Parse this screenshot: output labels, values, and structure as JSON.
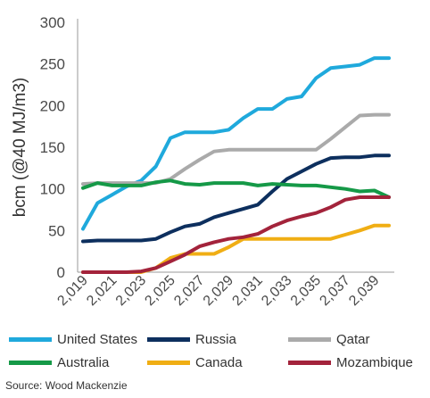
{
  "chart_data": {
    "type": "line",
    "ylabel": "bcm (@40 MJ/m3)",
    "ylim": [
      0,
      300
    ],
    "yticks": [
      0,
      50,
      100,
      150,
      200,
      250,
      300
    ],
    "ytick_labels": [
      "0",
      "50",
      "100",
      "150",
      "200",
      "250",
      "300"
    ],
    "x": [
      2019,
      2020,
      2021,
      2022,
      2023,
      2024,
      2025,
      2026,
      2027,
      2028,
      2029,
      2030,
      2031,
      2032,
      2033,
      2034,
      2035,
      2036,
      2037,
      2038,
      2039,
      2040
    ],
    "xtick_labels": [
      "2,019",
      "2,021",
      "2,023",
      "2,025",
      "2,027",
      "2,029",
      "2,031",
      "2,033",
      "2,035",
      "2,037",
      "2,039"
    ],
    "grid": false,
    "legend_position": "bottom",
    "series": [
      {
        "name": "United States",
        "color": "#1fa9dc",
        "values": [
          52,
          83,
          93,
          103,
          110,
          127,
          161,
          168,
          168,
          168,
          171,
          185,
          196,
          196,
          208,
          211,
          233,
          245,
          247,
          249,
          257,
          257
        ]
      },
      {
        "name": "Russia",
        "color": "#0d2f5e",
        "values": [
          37,
          38,
          38,
          38,
          38,
          40,
          48,
          55,
          58,
          66,
          71,
          76,
          81,
          97,
          112,
          121,
          130,
          137,
          138,
          138,
          140,
          140
        ]
      },
      {
        "name": "Qatar",
        "color": "#aaaaaa",
        "values": [
          106,
          107,
          107,
          107,
          107,
          107,
          112,
          124,
          135,
          145,
          147,
          147,
          147,
          147,
          147,
          147,
          147,
          160,
          174,
          188,
          189,
          189
        ]
      },
      {
        "name": "Australia",
        "color": "#159947",
        "values": [
          101,
          107,
          104,
          104,
          104,
          108,
          110,
          106,
          105,
          107,
          107,
          107,
          104,
          106,
          105,
          104,
          104,
          102,
          100,
          97,
          98,
          90
        ]
      },
      {
        "name": "Canada",
        "color": "#f0ae14",
        "values": [
          0,
          0,
          0,
          0,
          0,
          5,
          17,
          22,
          22,
          22,
          30,
          40,
          40,
          40,
          40,
          40,
          40,
          40,
          45,
          50,
          56,
          56
        ]
      },
      {
        "name": "Mozambique",
        "color": "#a3233b",
        "values": [
          0,
          0,
          0,
          0,
          1,
          5,
          13,
          21,
          31,
          36,
          40,
          42,
          46,
          55,
          62,
          67,
          71,
          78,
          87,
          90,
          90,
          90
        ]
      }
    ]
  },
  "source": "Source: Wood Mackenzie"
}
